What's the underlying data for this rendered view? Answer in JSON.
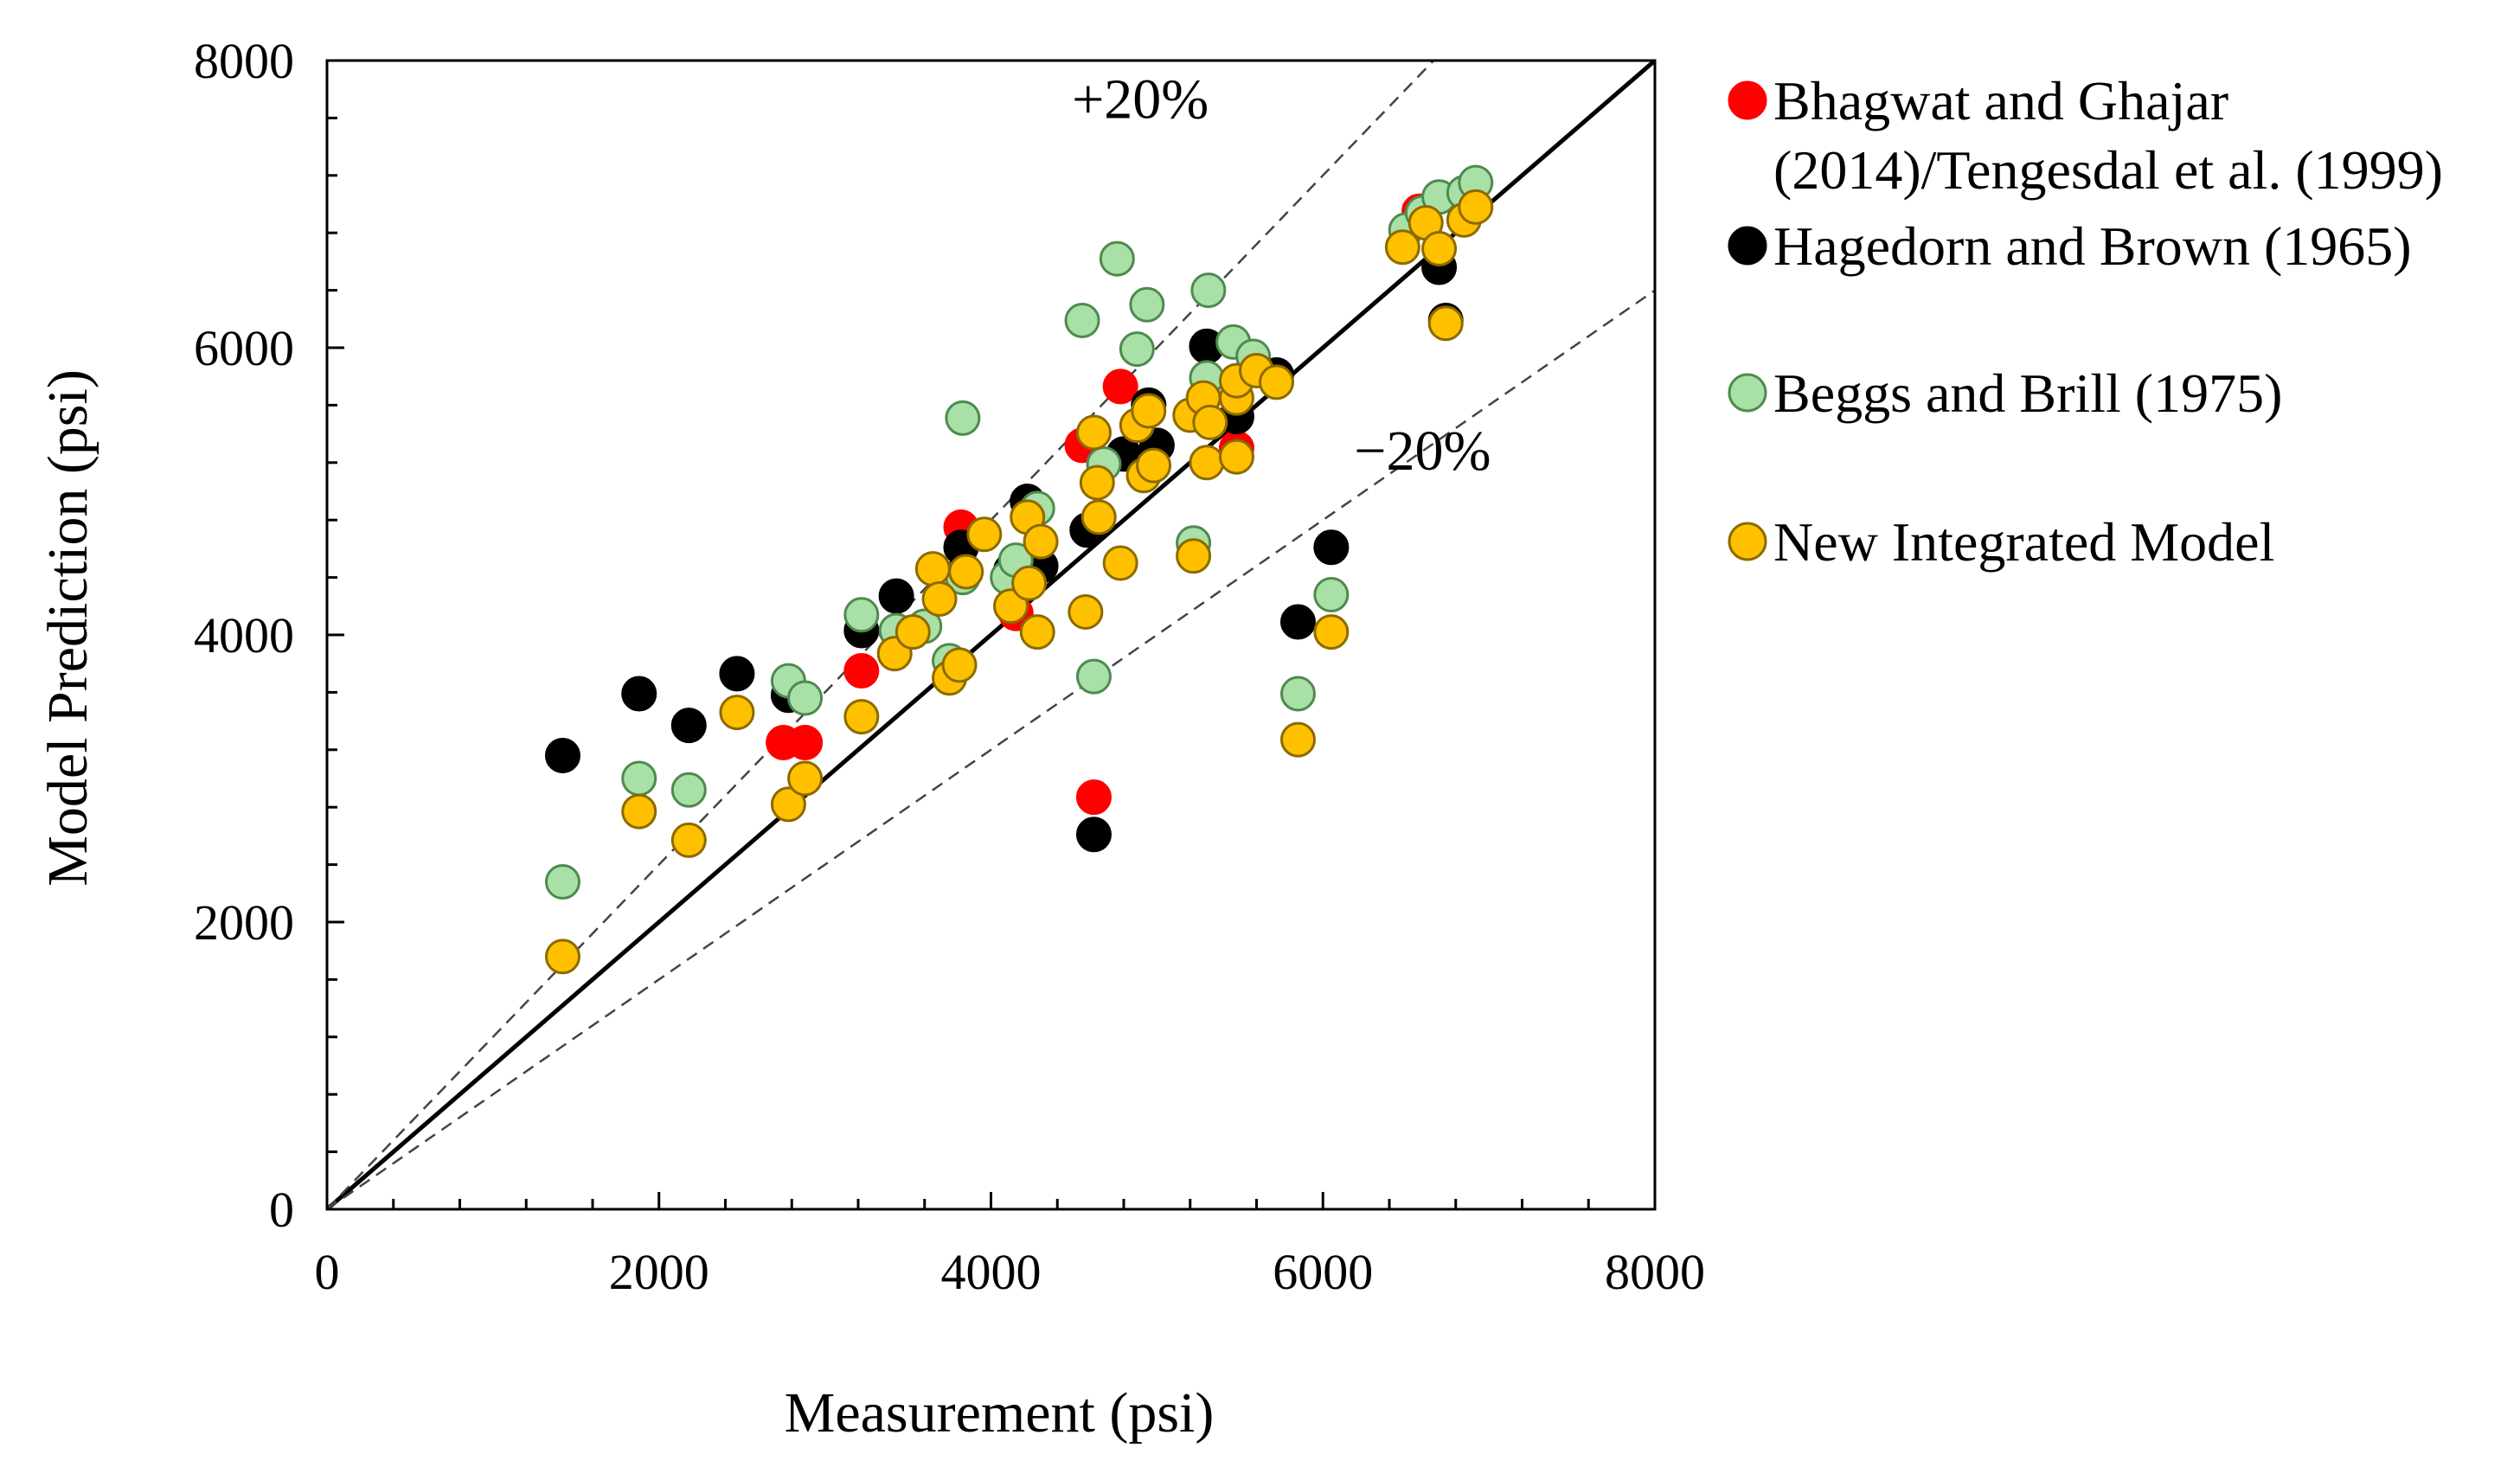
{
  "chart_data": {
    "type": "scatter",
    "title": "",
    "xlabel": "Measurement  (psi)",
    "ylabel": "Model Prediction  (psi)",
    "xlim": [
      0,
      8000
    ],
    "ylim": [
      0,
      8000
    ],
    "xticks": [
      "0",
      "2000",
      "4000",
      "6000",
      "8000"
    ],
    "yticks": [
      "0",
      "2000",
      "4000",
      "6000",
      "8000"
    ],
    "minor_tick_step": 400,
    "grid": false,
    "legend_position": "outside-right",
    "reference_lines": [
      {
        "name": "identity",
        "slope": 1.0,
        "style": "solid"
      },
      {
        "name": "plus-20",
        "slope": 1.2,
        "style": "dashed"
      },
      {
        "name": "minus-20",
        "slope": 0.8,
        "style": "dashed"
      }
    ],
    "annotations": [
      {
        "text": "+20%",
        "x": 4900,
        "y": 7600
      },
      {
        "text": "−20%",
        "x": 6600,
        "y": 5150
      }
    ],
    "series": [
      {
        "name": "Bhagwat and Ghajar (2014)/Tengesdal et al. (1999)",
        "legend_lines": [
          "Bhagwat and Ghajar",
          "(2014)/Tengesdal et al. (1999)"
        ],
        "color": "#ff0000",
        "stroke": "#ff0000",
        "points": [
          [
            2750,
            3250
          ],
          [
            2880,
            3250
          ],
          [
            3220,
            3750
          ],
          [
            3820,
            4750
          ],
          [
            4150,
            4150
          ],
          [
            4550,
            5320
          ],
          [
            4620,
            2870
          ],
          [
            4780,
            5730
          ],
          [
            5480,
            5300
          ],
          [
            6580,
            6950
          ]
        ]
      },
      {
        "name": "Hagedorn and Brown (1965)",
        "legend_lines": [
          "Hagedorn and Brown (1965)"
        ],
        "color": "#000000",
        "stroke": "#000000",
        "points": [
          [
            1420,
            3160
          ],
          [
            1880,
            3590
          ],
          [
            2180,
            3370
          ],
          [
            2470,
            3730
          ],
          [
            2780,
            3580
          ],
          [
            3220,
            4030
          ],
          [
            3430,
            4270
          ],
          [
            3820,
            4610
          ],
          [
            4120,
            4450
          ],
          [
            4220,
            4930
          ],
          [
            4300,
            4480
          ],
          [
            4580,
            4730
          ],
          [
            4620,
            2610
          ],
          [
            4800,
            5260
          ],
          [
            4950,
            5600
          ],
          [
            5000,
            5320
          ],
          [
            5300,
            6010
          ],
          [
            5480,
            5520
          ],
          [
            5720,
            5810
          ],
          [
            5850,
            4090
          ],
          [
            6050,
            4610
          ],
          [
            6700,
            6560
          ],
          [
            6740,
            6190
          ]
        ]
      },
      {
        "name": "Beggs and Brill (1975)",
        "legend_lines": [
          "Beggs and Brill (1975)"
        ],
        "color": "#a8e0a8",
        "stroke": "#4e8a4e",
        "points": [
          [
            1420,
            2280
          ],
          [
            1880,
            3000
          ],
          [
            2180,
            2920
          ],
          [
            2780,
            3680
          ],
          [
            2880,
            3560
          ],
          [
            3220,
            4140
          ],
          [
            3430,
            4030
          ],
          [
            3600,
            4060
          ],
          [
            3750,
            3820
          ],
          [
            3830,
            5510
          ],
          [
            3830,
            4400
          ],
          [
            4100,
            4400
          ],
          [
            4150,
            4520
          ],
          [
            4280,
            4880
          ],
          [
            4550,
            6190
          ],
          [
            4620,
            3710
          ],
          [
            4680,
            5190
          ],
          [
            4760,
            6620
          ],
          [
            4880,
            5990
          ],
          [
            4940,
            6300
          ],
          [
            5220,
            4640
          ],
          [
            5300,
            5790
          ],
          [
            5310,
            6400
          ],
          [
            5460,
            6040
          ],
          [
            5580,
            5940
          ],
          [
            6050,
            4280
          ],
          [
            5850,
            3590
          ],
          [
            6500,
            6820
          ],
          [
            6600,
            6940
          ],
          [
            6700,
            7050
          ],
          [
            6850,
            7080
          ],
          [
            6920,
            7150
          ]
        ]
      },
      {
        "name": "New Integrated Model",
        "legend_lines": [
          "New Integrated Model"
        ],
        "color": "#ffc000",
        "stroke": "#8c6a00",
        "points": [
          [
            1420,
            1760
          ],
          [
            1880,
            2770
          ],
          [
            2180,
            2570
          ],
          [
            2470,
            3460
          ],
          [
            2780,
            2820
          ],
          [
            2880,
            3000
          ],
          [
            3220,
            3430
          ],
          [
            3420,
            3870
          ],
          [
            3530,
            4020
          ],
          [
            3650,
            4460
          ],
          [
            3690,
            4250
          ],
          [
            3750,
            3700
          ],
          [
            3810,
            3790
          ],
          [
            3850,
            4440
          ],
          [
            3960,
            4700
          ],
          [
            4120,
            4200
          ],
          [
            4220,
            4820
          ],
          [
            4230,
            4360
          ],
          [
            4280,
            4020
          ],
          [
            4300,
            4650
          ],
          [
            4570,
            4160
          ],
          [
            4620,
            5410
          ],
          [
            4640,
            5060
          ],
          [
            4650,
            4820
          ],
          [
            4780,
            4500
          ],
          [
            4880,
            5460
          ],
          [
            4920,
            5110
          ],
          [
            4980,
            5180
          ],
          [
            4950,
            5560
          ],
          [
            5220,
            4550
          ],
          [
            5200,
            5530
          ],
          [
            5280,
            5650
          ],
          [
            5300,
            5200
          ],
          [
            5320,
            5480
          ],
          [
            5480,
            5240
          ],
          [
            5480,
            5650
          ],
          [
            5480,
            5770
          ],
          [
            5600,
            5840
          ],
          [
            5720,
            5760
          ],
          [
            5850,
            3270
          ],
          [
            6050,
            4020
          ],
          [
            6480,
            6700
          ],
          [
            6620,
            6870
          ],
          [
            6700,
            6690
          ],
          [
            6740,
            6170
          ],
          [
            6850,
            6890
          ],
          [
            6920,
            6980
          ]
        ]
      }
    ]
  }
}
